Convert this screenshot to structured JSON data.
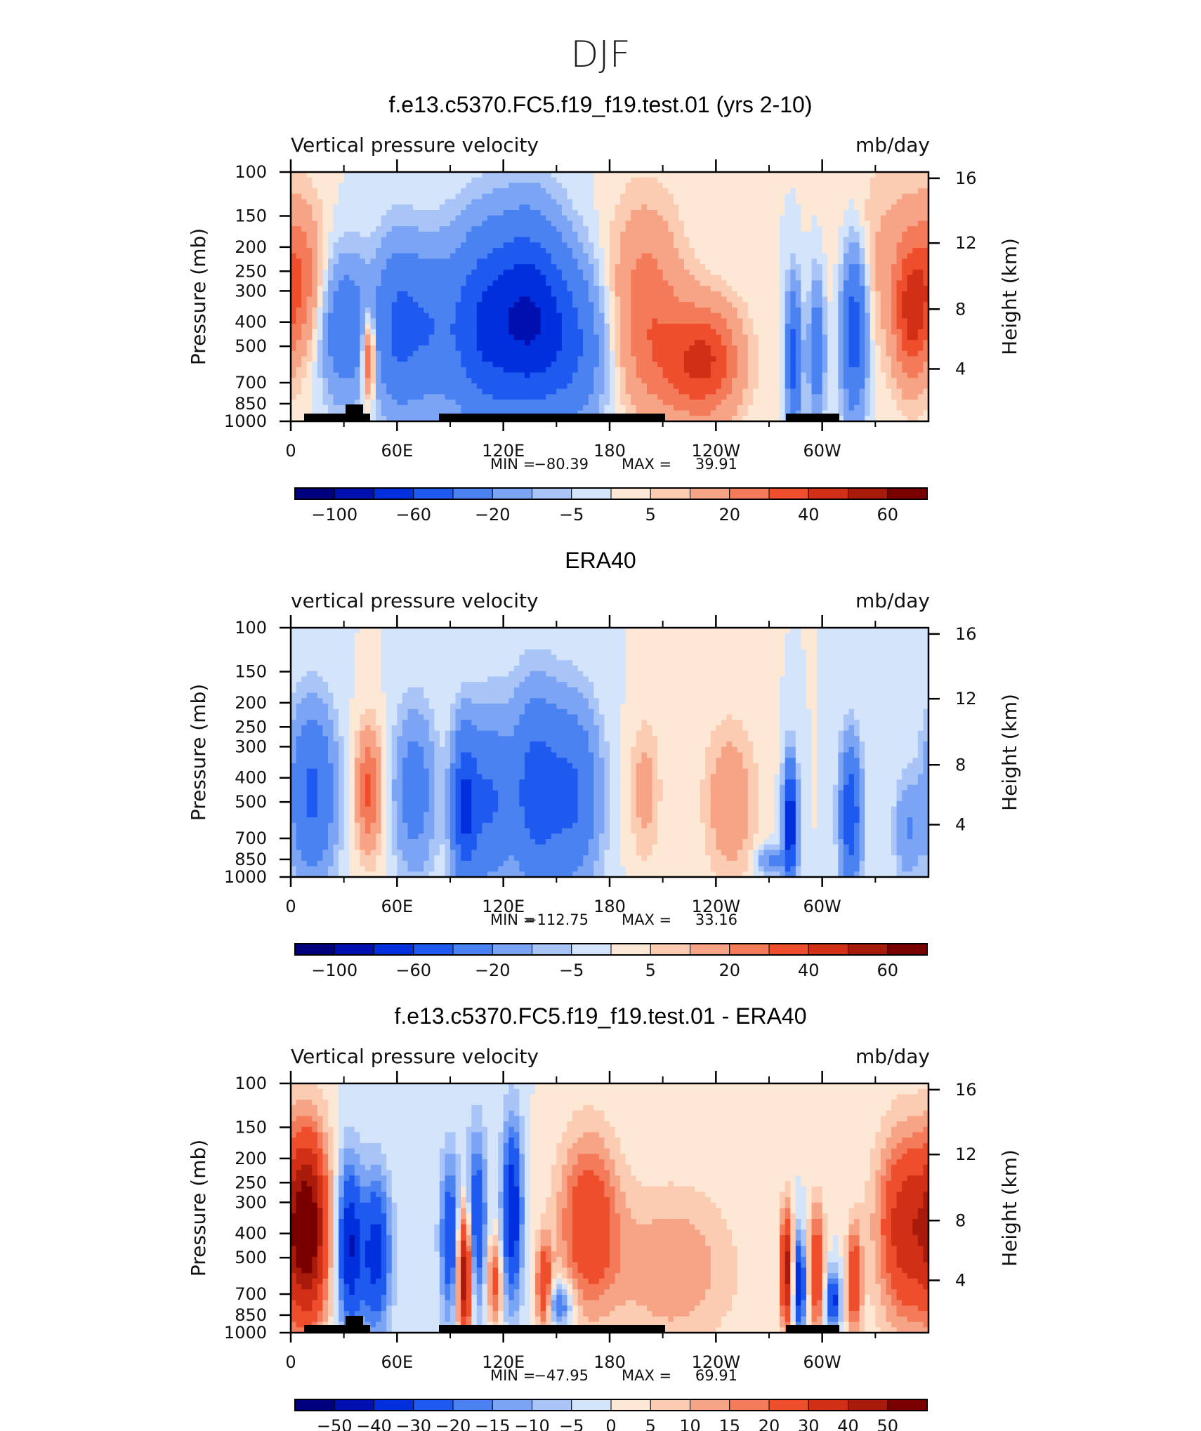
{
  "figure": {
    "title": "DJF",
    "minmax_labels": {
      "min": "MIN =",
      "max": "MAX ="
    }
  },
  "colors": {
    "cmap_abs": [
      "#00007f",
      "#0010b0",
      "#0030dd",
      "#1e5af0",
      "#4b82f2",
      "#7ba4f4",
      "#a9c4f7",
      "#d3e4fb",
      "#fde8d6",
      "#fbcbb2",
      "#f7a486",
      "#f47b5a",
      "#ee4e2c",
      "#d12f16",
      "#a81a0a",
      "#7a0000"
    ],
    "cmap_diff": [
      "#00007f",
      "#0010b0",
      "#0030dd",
      "#1e5af0",
      "#4b82f2",
      "#7ba4f4",
      "#a9c4f7",
      "#d3e4fb",
      "#fde8d6",
      "#fbcbb2",
      "#f7a486",
      "#f47b5a",
      "#ee4e2c",
      "#d12f16",
      "#a81a0a",
      "#7a0000"
    ],
    "topography": "#000000"
  },
  "chart_data": [
    {
      "type": "heatmap",
      "title": "f.e13.c5370.FC5.f19_f19.test.01 (yrs 2-10)",
      "subtitle_left": "Vertical pressure velocity",
      "subtitle_right": "mb/day",
      "ylabel": "Pressure (mb)",
      "ylabel_right": "Height (km)",
      "yticks": [
        "100",
        "150",
        "200",
        "250",
        "300",
        "400",
        "500",
        "700",
        "850",
        "1000"
      ],
      "yticks_right": [
        "16",
        "12",
        "8",
        "4"
      ],
      "xticks": [
        "0",
        "60E",
        "120E",
        "180",
        "120W",
        "60W"
      ],
      "min": "−80.39",
      "max": "39.91",
      "colorbar_labels": [
        "−100",
        "−60",
        "−20",
        "−5",
        "5",
        "20",
        "40",
        "60"
      ],
      "colorbar_levels": [
        -100,
        -80,
        -60,
        -40,
        -20,
        -10,
        -5,
        0,
        5,
        10,
        20,
        30,
        40,
        50,
        60
      ],
      "has_topography": true,
      "features": [
        {
          "lon": 5,
          "p": 280,
          "v": 25,
          "wl": 10,
          "wp": 180
        },
        {
          "lon": 30,
          "p": 420,
          "v": -35,
          "wl": 10,
          "wp": 250
        },
        {
          "lon": 44,
          "p": 550,
          "v": 45,
          "wl": 2.5,
          "wp": 170
        },
        {
          "lon": 60,
          "p": 420,
          "v": -40,
          "wl": 9,
          "wp": 300
        },
        {
          "lon": 78,
          "p": 420,
          "v": -30,
          "wl": 10,
          "wp": 280
        },
        {
          "lon": 108,
          "p": 420,
          "v": -55,
          "wl": 14,
          "wp": 360
        },
        {
          "lon": 135,
          "p": 380,
          "v": -70,
          "wl": 14,
          "wp": 320
        },
        {
          "lon": 160,
          "p": 500,
          "v": -35,
          "wl": 14,
          "wp": 350
        },
        {
          "lon": 200,
          "p": 330,
          "v": 25,
          "wl": 15,
          "wp": 300
        },
        {
          "lon": 235,
          "p": 560,
          "v": 30,
          "wl": 14,
          "wp": 260
        },
        {
          "lon": 222,
          "p": 620,
          "v": 15,
          "wl": 20,
          "wp": 300
        },
        {
          "lon": 284,
          "p": 560,
          "v": -50,
          "wl": 3,
          "wp": 320
        },
        {
          "lon": 297,
          "p": 520,
          "v": -35,
          "wl": 3,
          "wp": 300
        },
        {
          "lon": 318,
          "p": 430,
          "v": -55,
          "wl": 5,
          "wp": 300
        },
        {
          "lon": 340,
          "p": 230,
          "v": 12,
          "wl": 20,
          "wp": 220
        },
        {
          "lon": 350,
          "p": 380,
          "v": 32,
          "wl": 7,
          "wp": 220
        }
      ]
    },
    {
      "type": "heatmap",
      "title": "ERA40",
      "subtitle_left": "vertical pressure velocity",
      "subtitle_right": "mb/day",
      "ylabel": "Pressure (mb)",
      "ylabel_right": "Height (km)",
      "yticks": [
        "100",
        "150",
        "200",
        "250",
        "300",
        "400",
        "500",
        "700",
        "850",
        "1000"
      ],
      "yticks_right": [
        "16",
        "12",
        "8",
        "4"
      ],
      "xticks": [
        "0",
        "60E",
        "120E",
        "180",
        "120W",
        "60W"
      ],
      "min": "−112.75",
      "max": "33.16",
      "colorbar_labels": [
        "−100",
        "−60",
        "−20",
        "−5",
        "5",
        "20",
        "40",
        "60"
      ],
      "colorbar_levels": [
        -100,
        -80,
        -60,
        -40,
        -20,
        -10,
        -5,
        0,
        5,
        10,
        20,
        30,
        40,
        50,
        60
      ],
      "has_topography": false,
      "features": [
        {
          "lon": 12,
          "p": 460,
          "v": -45,
          "wl": 9,
          "wp": 320
        },
        {
          "lon": 44,
          "p": 450,
          "v": 32,
          "wl": 5,
          "wp": 220
        },
        {
          "lon": 70,
          "p": 450,
          "v": -30,
          "wl": 8,
          "wp": 300
        },
        {
          "lon": 98,
          "p": 520,
          "v": -60,
          "wl": 5,
          "wp": 330
        },
        {
          "lon": 112,
          "p": 500,
          "v": -40,
          "wl": 8,
          "wp": 360
        },
        {
          "lon": 138,
          "p": 450,
          "v": -50,
          "wl": 10,
          "wp": 380
        },
        {
          "lon": 160,
          "p": 470,
          "v": -40,
          "wl": 10,
          "wp": 360
        },
        {
          "lon": 200,
          "p": 450,
          "v": 14,
          "wl": 6,
          "wp": 250
        },
        {
          "lon": 248,
          "p": 500,
          "v": 18,
          "wl": 10,
          "wp": 320
        },
        {
          "lon": 282,
          "p": 600,
          "v": -85,
          "wl": 2.5,
          "wp": 260
        },
        {
          "lon": 272,
          "p": 860,
          "v": -25,
          "wl": 6,
          "wp": 80
        },
        {
          "lon": 316,
          "p": 560,
          "v": -60,
          "wl": 4,
          "wp": 300
        },
        {
          "lon": 348,
          "p": 650,
          "v": -20,
          "wl": 5,
          "wp": 250
        }
      ]
    },
    {
      "type": "heatmap",
      "title": "f.e13.c5370.FC5.f19_f19.test.01 - ERA40",
      "subtitle_left": "Vertical pressure velocity",
      "subtitle_right": "mb/day",
      "ylabel": "Pressure (mb)",
      "ylabel_right": "Height (km)",
      "yticks": [
        "100",
        "150",
        "200",
        "250",
        "300",
        "400",
        "500",
        "700",
        "850",
        "1000"
      ],
      "yticks_right": [
        "16",
        "12",
        "8",
        "4"
      ],
      "xticks": [
        "0",
        "60E",
        "120E",
        "180",
        "120W",
        "60W"
      ],
      "min": "−47.95",
      "max": "69.91",
      "colorbar_labels": [
        "−50",
        "−40",
        "−30",
        "−20",
        "−15",
        "−10",
        "−5",
        "0",
        "5",
        "10",
        "15",
        "20",
        "30",
        "40",
        "50"
      ],
      "colorbar_levels": [
        -50,
        -40,
        -30,
        -20,
        -15,
        -10,
        -5,
        0,
        5,
        10,
        15,
        20,
        30,
        40,
        50
      ],
      "has_topography": true,
      "features": [
        {
          "lon": 10,
          "p": 380,
          "v": 55,
          "wl": 8,
          "wp": 330
        },
        {
          "lon": 33,
          "p": 450,
          "v": -40,
          "wl": 5,
          "wp": 330
        },
        {
          "lon": 48,
          "p": 480,
          "v": -35,
          "wl": 6,
          "wp": 320
        },
        {
          "lon": 98,
          "p": 580,
          "v": 55,
          "wl": 3,
          "wp": 300
        },
        {
          "lon": 90,
          "p": 420,
          "v": -30,
          "wl": 4,
          "wp": 300
        },
        {
          "lon": 105,
          "p": 360,
          "v": -30,
          "wl": 4,
          "wp": 280
        },
        {
          "lon": 125,
          "p": 330,
          "v": -40,
          "wl": 4,
          "wp": 260
        },
        {
          "lon": 115,
          "p": 620,
          "v": 25,
          "wl": 3,
          "wp": 200
        },
        {
          "lon": 143,
          "p": 650,
          "v": 30,
          "wl": 3,
          "wp": 220
        },
        {
          "lon": 152,
          "p": 770,
          "v": -25,
          "wl": 5,
          "wp": 120
        },
        {
          "lon": 168,
          "p": 360,
          "v": 28,
          "wl": 12,
          "wp": 280
        },
        {
          "lon": 215,
          "p": 550,
          "v": 15,
          "wl": 25,
          "wp": 380
        },
        {
          "lon": 280,
          "p": 560,
          "v": 45,
          "wl": 2.5,
          "wp": 260
        },
        {
          "lon": 287,
          "p": 640,
          "v": -40,
          "wl": 2.5,
          "wp": 230
        },
        {
          "lon": 297,
          "p": 560,
          "v": 30,
          "wl": 3,
          "wp": 300
        },
        {
          "lon": 306,
          "p": 740,
          "v": -35,
          "wl": 3,
          "wp": 150
        },
        {
          "lon": 318,
          "p": 620,
          "v": 30,
          "wl": 3,
          "wp": 260
        },
        {
          "lon": 348,
          "p": 380,
          "v": 38,
          "wl": 12,
          "wp": 320
        }
      ]
    }
  ]
}
